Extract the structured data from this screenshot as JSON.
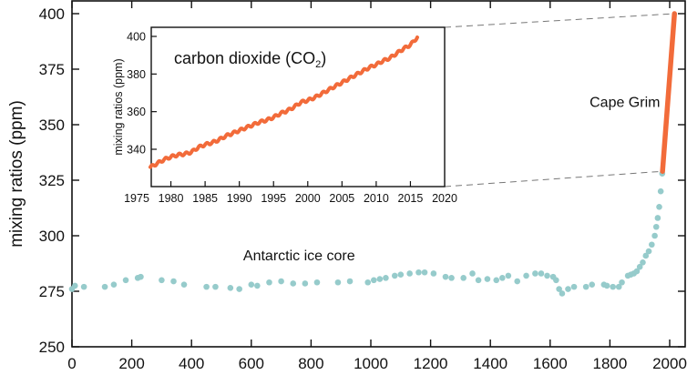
{
  "chart_data": [
    {
      "id": "main",
      "type": "scatter",
      "title": "",
      "xlabel": "",
      "ylabel": "mixing ratios (ppm)",
      "xlim": [
        0,
        2020
      ],
      "ylim": [
        250,
        400
      ],
      "xticks": [
        0,
        200,
        400,
        600,
        800,
        1000,
        1200,
        1400,
        1600,
        1800,
        2000
      ],
      "yticks": [
        250,
        275,
        300,
        325,
        350,
        375,
        400
      ],
      "grid": false,
      "annotations": [
        {
          "text": "Antarctic ice core",
          "x": 760,
          "y": 289
        },
        {
          "text": "Cape Grim",
          "x": 1850,
          "y": 358
        }
      ],
      "series": [
        {
          "name": "Antarctic ice core",
          "color": "#96cbcb",
          "kind": "points",
          "points": [
            [
              0,
              276
            ],
            [
              10,
              277.5
            ],
            [
              40,
              277
            ],
            [
              110,
              277
            ],
            [
              140,
              278
            ],
            [
              180,
              280
            ],
            [
              220,
              281
            ],
            [
              230,
              281.5
            ],
            [
              300,
              280
            ],
            [
              340,
              279.5
            ],
            [
              375,
              278
            ],
            [
              450,
              277
            ],
            [
              480,
              277
            ],
            [
              530,
              276.5
            ],
            [
              560,
              276
            ],
            [
              600,
              278
            ],
            [
              620,
              277.5
            ],
            [
              660,
              279
            ],
            [
              700,
              279.5
            ],
            [
              740,
              278.5
            ],
            [
              780,
              278.5
            ],
            [
              820,
              279
            ],
            [
              890,
              279
            ],
            [
              930,
              279.5
            ],
            [
              990,
              279
            ],
            [
              1010,
              280
            ],
            [
              1030,
              280.5
            ],
            [
              1050,
              281
            ],
            [
              1080,
              282
            ],
            [
              1100,
              282.5
            ],
            [
              1130,
              283
            ],
            [
              1160,
              283.5
            ],
            [
              1180,
              283.5
            ],
            [
              1210,
              283
            ],
            [
              1250,
              281.5
            ],
            [
              1270,
              281
            ],
            [
              1310,
              281
            ],
            [
              1340,
              283
            ],
            [
              1360,
              280
            ],
            [
              1390,
              280.5
            ],
            [
              1420,
              280
            ],
            [
              1440,
              281
            ],
            [
              1460,
              282
            ],
            [
              1490,
              279.5
            ],
            [
              1520,
              282
            ],
            [
              1550,
              283
            ],
            [
              1570,
              283
            ],
            [
              1590,
              282
            ],
            [
              1610,
              281.5
            ],
            [
              1620,
              280
            ],
            [
              1630,
              276
            ],
            [
              1640,
              274
            ],
            [
              1660,
              276
            ],
            [
              1680,
              277
            ],
            [
              1720,
              277
            ],
            [
              1740,
              278
            ],
            [
              1780,
              278
            ],
            [
              1790,
              277.5
            ],
            [
              1810,
              277
            ],
            [
              1830,
              277
            ],
            [
              1840,
              279
            ],
            [
              1860,
              282
            ],
            [
              1870,
              282.5
            ],
            [
              1880,
              283
            ],
            [
              1890,
              284
            ],
            [
              1900,
              286
            ],
            [
              1910,
              288
            ],
            [
              1920,
              291
            ],
            [
              1930,
              293
            ],
            [
              1940,
              296
            ],
            [
              1950,
              300
            ],
            [
              1955,
              304
            ],
            [
              1960,
              308
            ],
            [
              1965,
              313
            ],
            [
              1970,
              320
            ],
            [
              1975,
              328
            ]
          ]
        },
        {
          "name": "Cape Grim",
          "color": "#f26b3a",
          "kind": "line",
          "points": [
            [
              1976,
              329
            ],
            [
              2016,
              400
            ]
          ]
        }
      ]
    },
    {
      "id": "inset",
      "type": "line",
      "title": "carbon dioxide (CO2)",
      "title_main": "carbon dioxide (CO",
      "title_sub": "2",
      "title_close": ")",
      "xlabel": "",
      "ylabel": "mixing ratios (ppm)",
      "xlim": [
        1975,
        2020
      ],
      "ylim": [
        320,
        405
      ],
      "xticks": [
        1975,
        1980,
        1985,
        1990,
        1995,
        2000,
        2005,
        2010,
        2015,
        2020
      ],
      "yticks": [
        340,
        360,
        380,
        400
      ],
      "grid": false,
      "series": [
        {
          "name": "Cape Grim CO2",
          "color": "#f26b3a",
          "x": [
            1977,
            1978,
            1979,
            1980,
            1981,
            1982,
            1983,
            1984,
            1985,
            1986,
            1987,
            1988,
            1989,
            1990,
            1991,
            1992,
            1993,
            1994,
            1995,
            1996,
            1997,
            1998,
            1999,
            2000,
            2001,
            2002,
            2003,
            2004,
            2005,
            2006,
            2007,
            2008,
            2009,
            2010,
            2011,
            2012,
            2013,
            2014,
            2015,
            2016
          ],
          "y": [
            330.5,
            332.5,
            334.5,
            336,
            337,
            337.5,
            338.5,
            341,
            342.5,
            343.5,
            345,
            347,
            348.5,
            350,
            351.5,
            353,
            354.5,
            355.5,
            357,
            359,
            360.5,
            362.5,
            365,
            366,
            367.5,
            369.5,
            371.5,
            373.5,
            375.5,
            377.5,
            379.5,
            381.5,
            383.5,
            385,
            387,
            388.5,
            391,
            393.5,
            395.5,
            399.5
          ]
        }
      ]
    }
  ]
}
